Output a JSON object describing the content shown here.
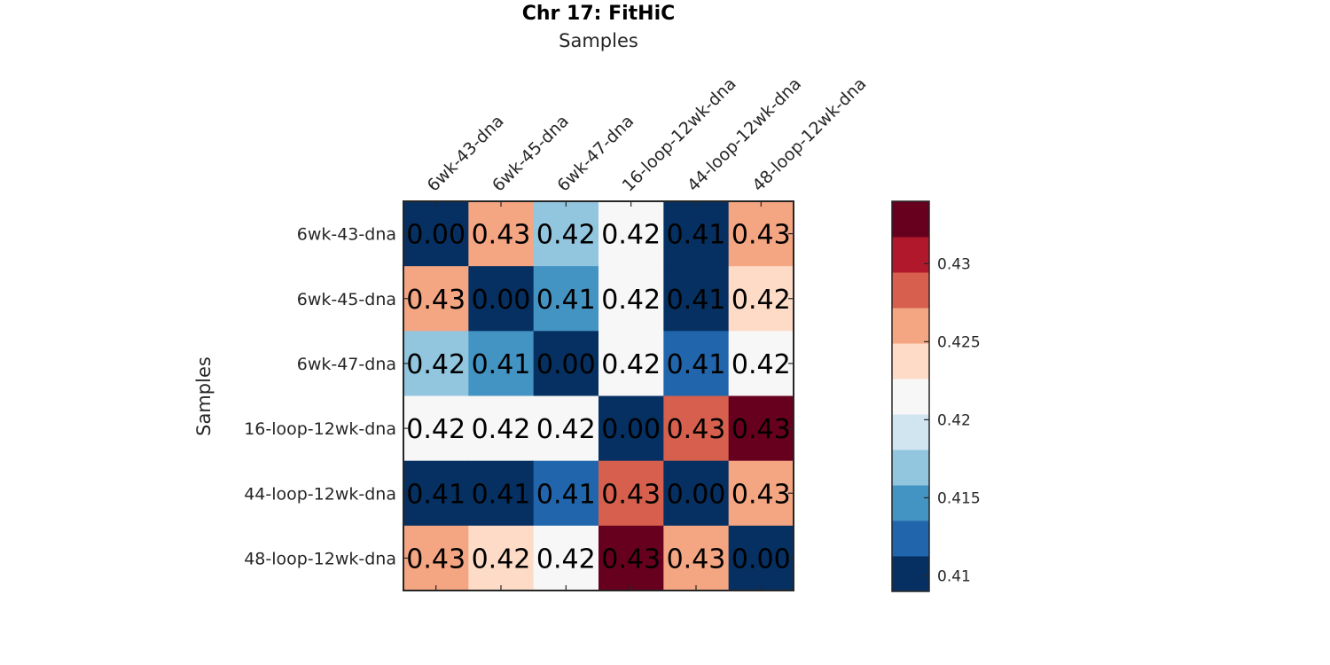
{
  "chart_data": {
    "type": "heatmap",
    "title": "Chr 17: FitHiC",
    "xlabel": "Samples",
    "ylabel": "Samples",
    "x_labels": [
      "6wk-43-dna",
      "6wk-45-dna",
      "6wk-47-dna",
      "16-loop-12wk-dna",
      "44-loop-12wk-dna",
      "48-loop-12wk-dna"
    ],
    "y_labels": [
      "6wk-43-dna",
      "6wk-45-dna",
      "6wk-47-dna",
      "16-loop-12wk-dna",
      "44-loop-12wk-dna",
      "48-loop-12wk-dna"
    ],
    "values": [
      [
        0.0,
        0.427,
        0.418,
        0.422,
        0.409,
        0.427
      ],
      [
        0.427,
        0.0,
        0.414,
        0.421,
        0.409,
        0.423
      ],
      [
        0.418,
        0.414,
        0.0,
        0.421,
        0.412,
        0.421
      ],
      [
        0.422,
        0.421,
        0.421,
        0.0,
        0.429,
        0.434
      ],
      [
        0.409,
        0.409,
        0.412,
        0.429,
        0.0,
        0.427
      ],
      [
        0.427,
        0.423,
        0.421,
        0.434,
        0.427,
        0.0
      ]
    ],
    "cell_labels": [
      [
        "0.00",
        "0.43",
        "0.42",
        "0.42",
        "0.41",
        "0.43"
      ],
      [
        "0.43",
        "0.00",
        "0.41",
        "0.42",
        "0.41",
        "0.42"
      ],
      [
        "0.42",
        "0.41",
        "0.00",
        "0.42",
        "0.41",
        "0.42"
      ],
      [
        "0.42",
        "0.42",
        "0.42",
        "0.00",
        "0.43",
        "0.43"
      ],
      [
        "0.41",
        "0.41",
        "0.41",
        "0.43",
        "0.00",
        "0.43"
      ],
      [
        "0.43",
        "0.42",
        "0.42",
        "0.43",
        "0.43",
        "0.00"
      ]
    ],
    "colorbar": {
      "range": [
        0.409,
        0.434
      ],
      "ticks": [
        0.41,
        0.415,
        0.42,
        0.425,
        0.43
      ],
      "tick_labels": [
        "0.41",
        "0.415",
        "0.42",
        "0.425",
        "0.43"
      ],
      "colors": [
        "#053061",
        "#2166ac",
        "#4393c3",
        "#92c5de",
        "#d1e5f0",
        "#f7f7f7",
        "#fddbc7",
        "#f4a582",
        "#d6604d",
        "#b2182b",
        "#67001f"
      ]
    }
  }
}
